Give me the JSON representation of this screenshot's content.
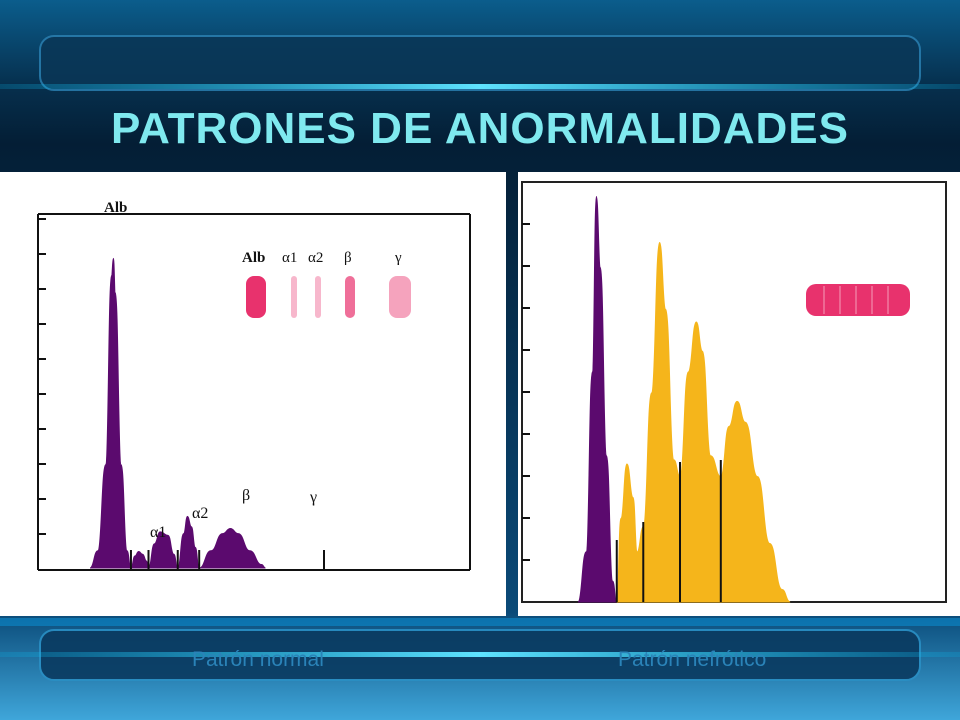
{
  "slide": {
    "title": "PATRONES DE ANORMALIDADES"
  },
  "colors": {
    "accent_title": "#7fe9ef",
    "bar_line": "#08b6ea",
    "peak_purple": "#5b0a6e",
    "peak_gold": "#f5b51b",
    "gel_pink": "#e8326d"
  },
  "chart_data": [
    {
      "type": "area",
      "caption": "Patrón normal",
      "peak_labels": [
        "Alb",
        "α1",
        "α2",
        "β",
        "γ"
      ],
      "legend": {
        "labels": [
          "Alb",
          "α1",
          "α2",
          "β",
          "γ"
        ],
        "bands": [
          {
            "label": "Alb",
            "intensity": 1.0
          },
          {
            "label": "α1",
            "intensity": 0.35
          },
          {
            "label": "α2",
            "intensity": 0.35
          },
          {
            "label": "β",
            "intensity": 0.7
          },
          {
            "label": "γ",
            "intensity": 0.45
          }
        ]
      },
      "series": [
        {
          "fraction": "Alb",
          "points": [
            [
              0.0,
              0
            ],
            [
              0.02,
              0.05
            ],
            [
              0.04,
              0.3
            ],
            [
              0.055,
              0.85
            ],
            [
              0.06,
              0.9
            ],
            [
              0.065,
              0.8
            ],
            [
              0.08,
              0.3
            ],
            [
              0.095,
              0.05
            ],
            [
              0.105,
              0
            ]
          ]
        },
        {
          "fraction": "α1",
          "points": [
            [
              0.105,
              0
            ],
            [
              0.115,
              0.035
            ],
            [
              0.125,
              0.048
            ],
            [
              0.135,
              0.04
            ],
            [
              0.145,
              0.02
            ],
            [
              0.15,
              0
            ]
          ]
        },
        {
          "fraction": "α2",
          "points": [
            [
              0.15,
              0
            ],
            [
              0.165,
              0.07
            ],
            [
              0.18,
              0.105
            ],
            [
              0.2,
              0.095
            ],
            [
              0.215,
              0.04
            ],
            [
              0.225,
              0
            ]
          ]
        },
        {
          "fraction": "β",
          "points": [
            [
              0.225,
              0
            ],
            [
              0.24,
              0.1
            ],
            [
              0.25,
              0.15
            ],
            [
              0.26,
              0.12
            ],
            [
              0.27,
              0.06
            ],
            [
              0.28,
              0
            ]
          ]
        },
        {
          "fraction": "γ",
          "points": [
            [
              0.28,
              0
            ],
            [
              0.31,
              0.05
            ],
            [
              0.34,
              0.1
            ],
            [
              0.36,
              0.115
            ],
            [
              0.38,
              0.1
            ],
            [
              0.41,
              0.05
            ],
            [
              0.44,
              0.01
            ],
            [
              0.45,
              0
            ]
          ]
        }
      ],
      "dividers": [
        0.105,
        0.15,
        0.225,
        0.28,
        0.6
      ]
    },
    {
      "type": "area",
      "caption": "Patrón nefrótico",
      "series": [
        {
          "fraction": "Alb",
          "color": "purple",
          "points": [
            [
              0.0,
              0
            ],
            [
              0.02,
              0.12
            ],
            [
              0.035,
              0.55
            ],
            [
              0.045,
              0.97
            ],
            [
              0.055,
              0.8
            ],
            [
              0.07,
              0.35
            ],
            [
              0.085,
              0.05
            ],
            [
              0.095,
              0
            ]
          ]
        },
        {
          "fraction": "α1",
          "color": "gold",
          "points": [
            [
              0.095,
              0
            ],
            [
              0.105,
              0.2
            ],
            [
              0.12,
              0.33
            ],
            [
              0.135,
              0.25
            ],
            [
              0.145,
              0.12
            ],
            [
              0.16,
              0.18
            ]
          ]
        },
        {
          "fraction": "α2",
          "color": "gold",
          "points": [
            [
              0.16,
              0.18
            ],
            [
              0.18,
              0.5
            ],
            [
              0.2,
              0.86
            ],
            [
              0.215,
              0.7
            ],
            [
              0.235,
              0.34
            ],
            [
              0.25,
              0.3
            ]
          ]
        },
        {
          "fraction": "β",
          "color": "gold",
          "points": [
            [
              0.25,
              0.3
            ],
            [
              0.27,
              0.55
            ],
            [
              0.29,
              0.67
            ],
            [
              0.305,
              0.6
            ],
            [
              0.325,
              0.35
            ],
            [
              0.35,
              0.3
            ]
          ]
        },
        {
          "fraction": "γ",
          "color": "gold",
          "points": [
            [
              0.35,
              0.3
            ],
            [
              0.37,
              0.42
            ],
            [
              0.39,
              0.48
            ],
            [
              0.41,
              0.43
            ],
            [
              0.44,
              0.3
            ],
            [
              0.47,
              0.14
            ],
            [
              0.5,
              0.03
            ],
            [
              0.52,
              0
            ]
          ]
        }
      ],
      "dividers": [
        0.095,
        0.16,
        0.25,
        0.35
      ],
      "gel_band": {
        "intensity": 1.0
      }
    }
  ]
}
